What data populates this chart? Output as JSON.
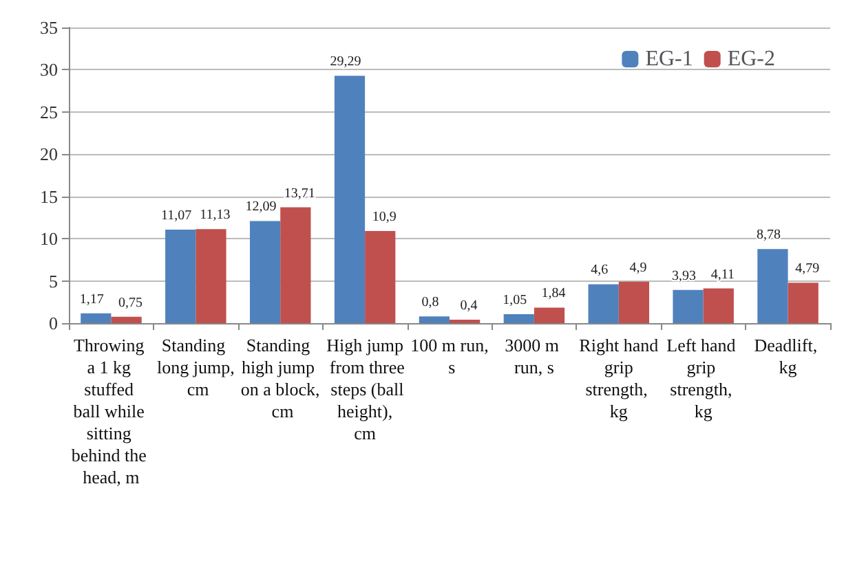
{
  "chart_data": {
    "type": "bar",
    "categories": [
      "Throwing a 1 kg stuffed ball while sitting behind the head, m",
      "Standing long jump, cm",
      "Standing high jump on a block, cm",
      "High jump from three steps (ball height), cm",
      "100 m run, s",
      "3000 m run, s",
      "Right hand grip strength, kg",
      "Left hand grip strength, kg",
      "Deadlift, kg"
    ],
    "series": [
      {
        "name": "EG-1",
        "color": "#4f81bd",
        "values": [
          1.17,
          11.07,
          12.09,
          29.29,
          0.8,
          1.05,
          4.6,
          3.93,
          8.78
        ],
        "value_labels": [
          "1,17",
          "11,07",
          "12,09",
          "29,29",
          "0,8",
          "1,05",
          "4,6",
          "3,93",
          "8,78"
        ]
      },
      {
        "name": "EG-2",
        "color": "#c0504d",
        "values": [
          0.75,
          11.13,
          13.71,
          10.9,
          0.4,
          1.84,
          4.9,
          4.11,
          4.79
        ],
        "value_labels": [
          "0,75",
          "11,13",
          "13,71",
          "10,9",
          "0,4",
          "1,84",
          "4,9",
          "4,11",
          "4,79"
        ]
      }
    ],
    "ylim": [
      0,
      35
    ],
    "yticks": [
      0,
      5,
      10,
      15,
      20,
      25,
      30,
      35
    ],
    "grid": "y",
    "legend": "top right"
  }
}
